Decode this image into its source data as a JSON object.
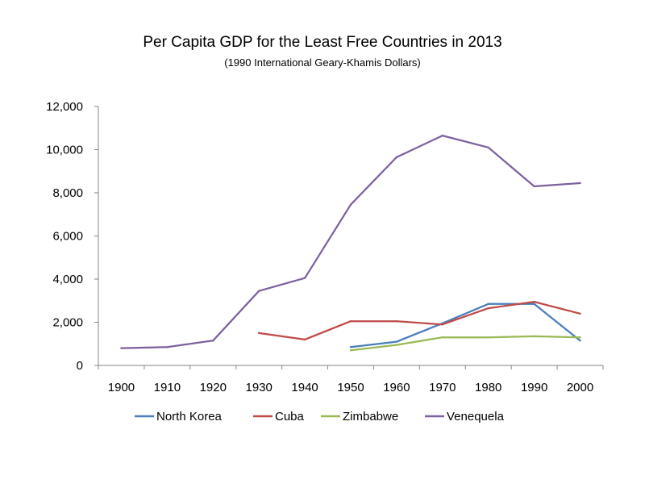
{
  "chart_data": {
    "type": "line",
    "title": "Per Capita GDP for the Least Free Countries in 2013",
    "subtitle": "(1990 International Geary-Khamis Dollars)",
    "xlabel": "",
    "ylabel": "",
    "x": [
      1900,
      1910,
      1920,
      1930,
      1940,
      1950,
      1960,
      1970,
      1980,
      1990,
      2000
    ],
    "x_tick_labels": [
      "1900",
      "1910",
      "1920",
      "1930",
      "1940",
      "1950",
      "1960",
      "1970",
      "1980",
      "1990",
      "2000"
    ],
    "ylim": [
      0,
      12000
    ],
    "y_ticks": [
      0,
      2000,
      4000,
      6000,
      8000,
      10000,
      12000
    ],
    "y_tick_labels": [
      "0",
      "2,000",
      "4,000",
      "6,000",
      "8,000",
      "10,000",
      "12,000"
    ],
    "grid": false,
    "legend_position": "bottom",
    "series": [
      {
        "name": "North Korea",
        "color": "#4a7ebb",
        "values": [
          null,
          null,
          null,
          null,
          null,
          850,
          1100,
          1950,
          2850,
          2850,
          1150
        ]
      },
      {
        "name": "Cuba",
        "color": "#be4b48",
        "values": [
          null,
          null,
          null,
          1500,
          1200,
          2050,
          2050,
          1900,
          2650,
          2950,
          2400
        ]
      },
      {
        "name": "Zimbabwe",
        "color": "#98b954",
        "values": [
          null,
          null,
          null,
          null,
          null,
          700,
          950,
          1300,
          1300,
          1350,
          1300
        ]
      },
      {
        "name": "Venequela",
        "color": "#7d60a0",
        "values": [
          800,
          850,
          1150,
          3450,
          4050,
          7450,
          9650,
          10650,
          10100,
          8300,
          8450
        ]
      }
    ]
  }
}
